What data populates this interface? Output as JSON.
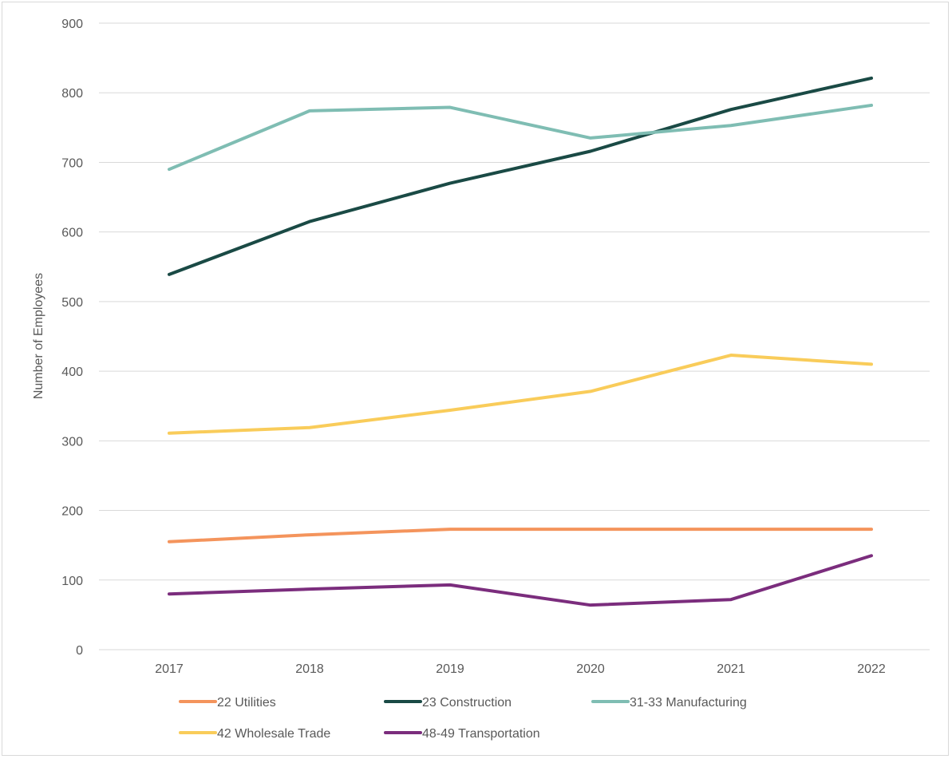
{
  "chart_data": {
    "type": "line",
    "title": "",
    "xlabel": "",
    "ylabel": "Number of Employees",
    "x": [
      "2017",
      "2018",
      "2019",
      "2020",
      "2021",
      "2022"
    ],
    "ylim": [
      0,
      900
    ],
    "yticks": [
      "0",
      "100",
      "200",
      "300",
      "400",
      "500",
      "600",
      "700",
      "800",
      "900"
    ],
    "grid": true,
    "legend_position": "bottom",
    "series": [
      {
        "name": "22 Utilities",
        "color": "#f4945c",
        "values": [
          155,
          165,
          173,
          173,
          173,
          173
        ]
      },
      {
        "name": "23 Construction",
        "color": "#1a4a45",
        "values": [
          539,
          615,
          670,
          716,
          776,
          821
        ]
      },
      {
        "name": "31-33 Manufacturing",
        "color": "#7fbdb3",
        "values": [
          690,
          774,
          779,
          735,
          753,
          782
        ]
      },
      {
        "name": "42 Wholesale Trade",
        "color": "#f9cc5a",
        "values": [
          311,
          319,
          344,
          371,
          423,
          410
        ]
      },
      {
        "name": "48-49 Transportation",
        "color": "#7b2d7d",
        "values": [
          80,
          87,
          93,
          64,
          72,
          135
        ]
      }
    ]
  }
}
